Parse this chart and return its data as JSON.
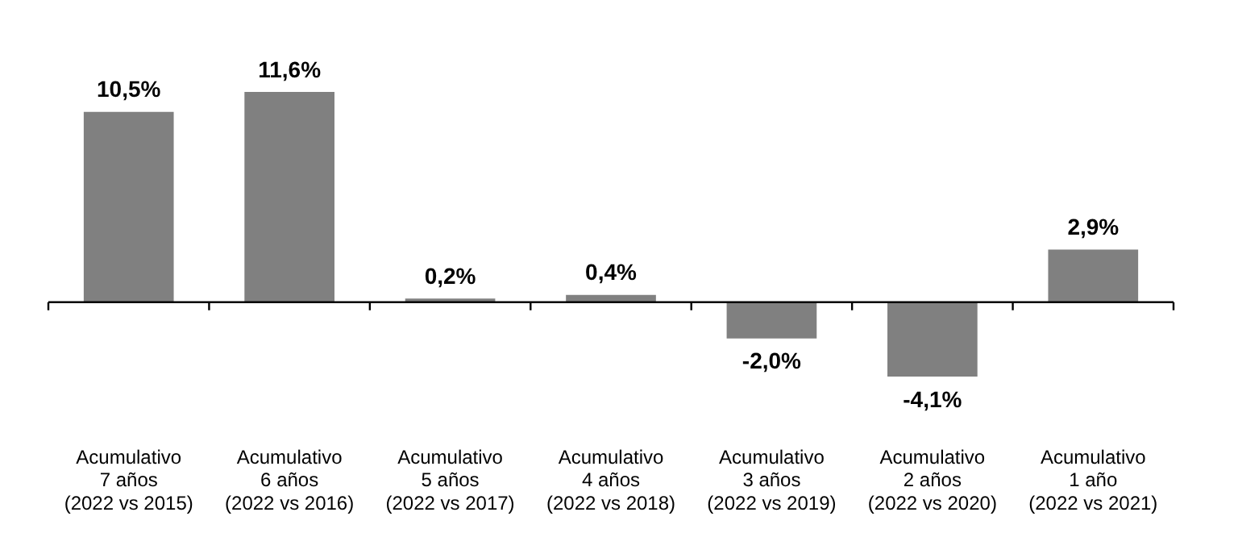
{
  "chart_data": {
    "type": "bar",
    "categories": [
      "Acumulativo\n7 años\n(2022 vs 2015)",
      "Acumulativo\n6 años\n(2022 vs 2016)",
      "Acumulativo\n5 años\n(2022 vs 2017)",
      "Acumulativo\n4 años\n(2022 vs 2018)",
      "Acumulativo\n3 años\n(2022 vs 2019)",
      "Acumulativo\n2 años\n(2022 vs 2020)",
      "Acumulativo\n1 año\n(2022 vs 2021)"
    ],
    "values": [
      10.5,
      11.6,
      0.2,
      0.4,
      -2.0,
      -4.1,
      2.9
    ],
    "value_labels": [
      "10,5%",
      "11,6%",
      "0,2%",
      "0,4%",
      "-2,0%",
      "-4,1%",
      "2,9%"
    ],
    "color": "#808080",
    "grid": false,
    "legend": false
  }
}
